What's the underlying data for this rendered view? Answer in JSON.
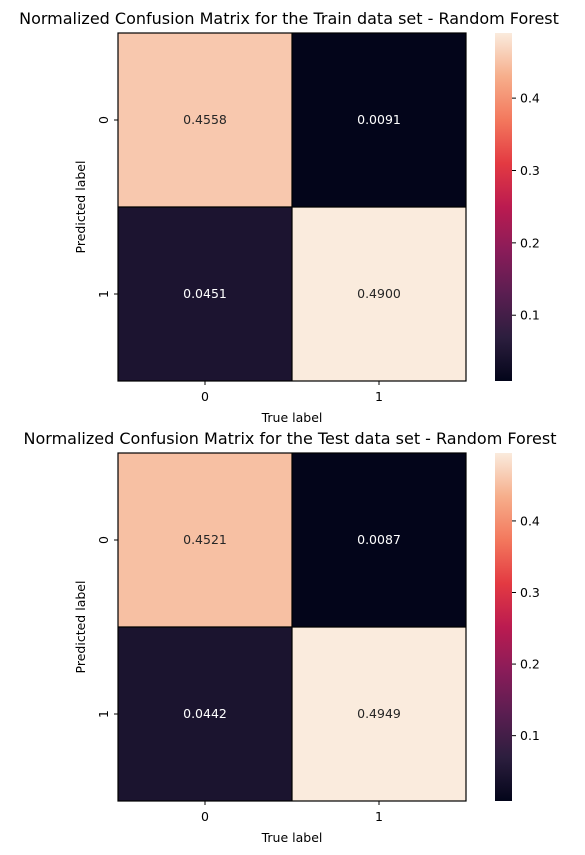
{
  "chart_data": [
    {
      "type": "heatmap",
      "title": "Normalized Confusion Matrix for the Train data set - Random Forest",
      "xlabel": "True label",
      "ylabel": "Predicted label",
      "x_categories": [
        "0",
        "1"
      ],
      "y_categories": [
        "0",
        "1"
      ],
      "values": [
        [
          0.4558,
          0.0091
        ],
        [
          0.0451,
          0.49
        ]
      ],
      "value_labels": [
        [
          "0.4558",
          "0.0091"
        ],
        [
          "0.0451",
          "0.4900"
        ]
      ],
      "colorbar": {
        "range": [
          0.0091,
          0.49
        ],
        "ticks": [
          "0.1",
          "0.2",
          "0.3",
          "0.4"
        ],
        "tick_values": [
          0.1,
          0.2,
          0.3,
          0.4
        ]
      },
      "colormap": "rocket"
    },
    {
      "type": "heatmap",
      "title": "Normalized Confusion Matrix for the Test data set - Random Forest",
      "xlabel": "True label",
      "ylabel": "Predicted label",
      "x_categories": [
        "0",
        "1"
      ],
      "y_categories": [
        "0",
        "1"
      ],
      "values": [
        [
          0.4521,
          0.0087
        ],
        [
          0.0442,
          0.4949
        ]
      ],
      "value_labels": [
        [
          "0.4521",
          "0.0087"
        ],
        [
          "0.0442",
          "0.4949"
        ]
      ],
      "colorbar": {
        "range": [
          0.0087,
          0.4949
        ],
        "ticks": [
          "0.1",
          "0.2",
          "0.3",
          "0.4"
        ],
        "tick_values": [
          0.1,
          0.2,
          0.3,
          0.4
        ]
      },
      "colormap": "rocket"
    }
  ]
}
